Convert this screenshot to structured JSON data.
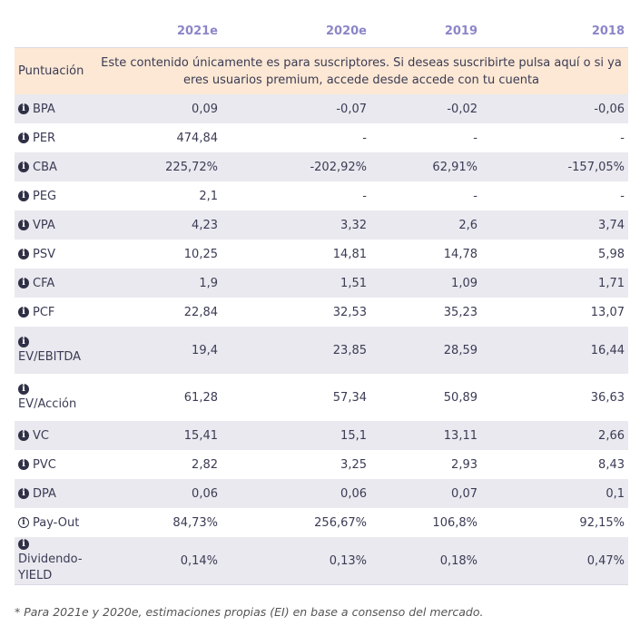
{
  "table": {
    "headers": [
      "2021e",
      "2020e",
      "2019",
      "2018"
    ],
    "subscription": {
      "label": "Puntuación",
      "message": "Este contenido únicamente es para suscriptores. Si deseas suscribirte pulsa aquí o si ya eres usuarios premium, accede desde accede con tu cuenta"
    },
    "rows": [
      {
        "label": "BPA",
        "values": [
          "0,09",
          "-0,07",
          "-0,02",
          "-0,06"
        ]
      },
      {
        "label": "PER",
        "values": [
          "474,84",
          "-",
          "-",
          "-"
        ]
      },
      {
        "label": "CBA",
        "values": [
          "225,72%",
          "-202,92%",
          "62,91%",
          "-157,05%"
        ]
      },
      {
        "label": "PEG",
        "values": [
          "2,1",
          "-",
          "-",
          "-"
        ]
      },
      {
        "label": "VPA",
        "values": [
          "4,23",
          "3,32",
          "2,6",
          "3,74"
        ]
      },
      {
        "label": "PSV",
        "values": [
          "10,25",
          "14,81",
          "14,78",
          "5,98"
        ]
      },
      {
        "label": "CFA",
        "values": [
          "1,9",
          "1,51",
          "1,09",
          "1,71"
        ]
      },
      {
        "label": "PCF",
        "values": [
          "22,84",
          "32,53",
          "35,23",
          "13,07"
        ]
      },
      {
        "label": "EV/EBITDA",
        "values": [
          "19,4",
          "23,85",
          "28,59",
          "16,44"
        ]
      },
      {
        "label": "EV/Acción",
        "values": [
          "61,28",
          "57,34",
          "50,89",
          "36,63"
        ]
      },
      {
        "label": "VC",
        "values": [
          "15,41",
          "15,1",
          "13,11",
          "2,66"
        ]
      },
      {
        "label": "PVC",
        "values": [
          "2,82",
          "3,25",
          "2,93",
          "8,43"
        ]
      },
      {
        "label": "DPA",
        "values": [
          "0,06",
          "0,06",
          "0,07",
          "0,1"
        ]
      },
      {
        "label": "Pay-Out",
        "values": [
          "84,73%",
          "256,67%",
          "106,8%",
          "92,15%"
        ]
      },
      {
        "label": "Dividendo-YIELD",
        "values": [
          "0,14%",
          "0,13%",
          "0,18%",
          "0,47%"
        ]
      }
    ]
  },
  "icons": {
    "info": "info-icon"
  },
  "footnote": "* Para 2021e y 2020e, estimaciones propias (EI) en base a consenso del mercado."
}
